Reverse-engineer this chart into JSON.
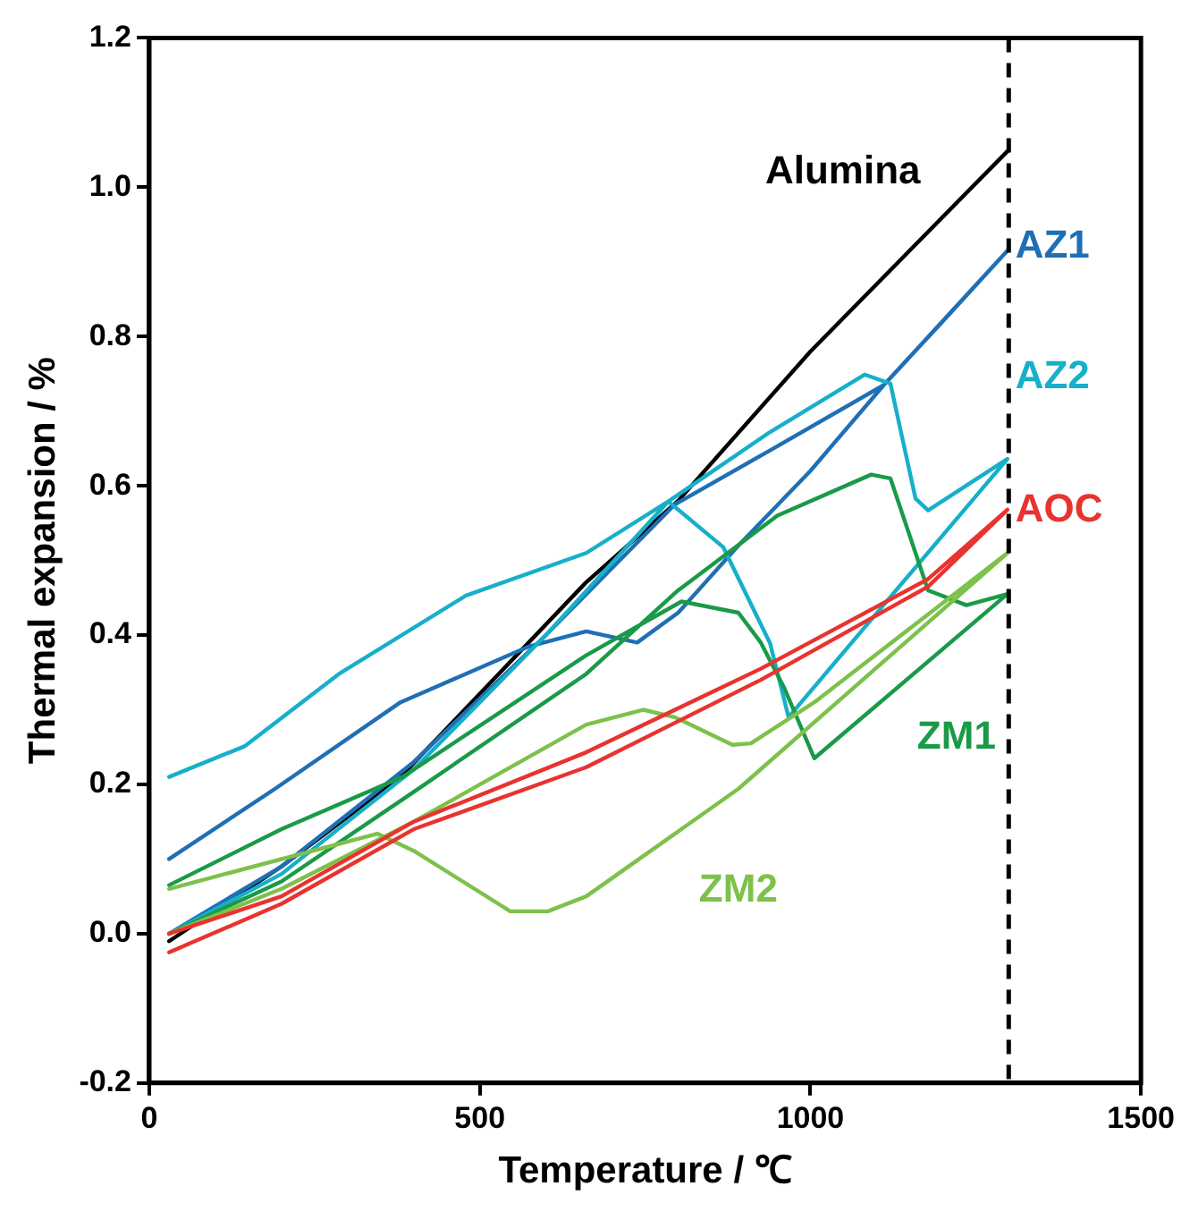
{
  "chart_data": {
    "type": "line",
    "xlabel": "Temperature / ℃",
    "ylabel": "Thermal expansion / %",
    "xlim": [
      0,
      1500
    ],
    "xticks": [
      0,
      500,
      1000,
      1500
    ],
    "ylim": [
      -0.2,
      1.2
    ],
    "yticks": [
      {
        "value": -0.2,
        "label": "-0.2"
      },
      {
        "value": 0,
        "label": "0.0"
      },
      {
        "value": 0.2,
        "label": "0.2"
      },
      {
        "value": 0.4,
        "label": "0.4"
      },
      {
        "value": 0.6,
        "label": "0.6"
      },
      {
        "value": 0.8,
        "label": "0.8"
      },
      {
        "value": 1,
        "label": "1.0"
      },
      {
        "value": 1.2,
        "label": "1.2"
      }
    ],
    "grid": false,
    "legend": false,
    "marker": "none",
    "line_style": "solid",
    "ref_lines": [
      {
        "axis": "x",
        "value": 1300,
        "color": "#000000",
        "line_style": "dashed"
      }
    ],
    "series": [
      {
        "name": "AOC",
        "color": "#e8332f",
        "x": [
          30,
          200,
          400,
          661,
          925,
          1178,
          1298,
          1178,
          925,
          661,
          400,
          200,
          30
        ],
        "values": [
          -0.025,
          0.04,
          0.14,
          0.223,
          0.34,
          0.465,
          0.568,
          0.475,
          0.355,
          0.243,
          0.15,
          0.05,
          0.0
        ]
      },
      {
        "name": "ZM2",
        "color": "#7dc14b",
        "x": [
          30,
          200,
          400,
          661,
          747,
          795,
          882,
          910,
          1006,
          1298,
          891,
          661,
          603,
          546,
          402,
          345,
          30
        ],
        "values": [
          0.0,
          0.06,
          0.15,
          0.28,
          0.3,
          0.29,
          0.253,
          0.255,
          0.31,
          0.51,
          0.194,
          0.05,
          0.03,
          0.03,
          0.11,
          0.134,
          0.06
        ]
      },
      {
        "name": "ZM1",
        "color": "#1a9a48",
        "x": [
          30,
          200,
          400,
          661,
          800,
          950,
          1092,
          1121,
          1178,
          1236,
          1298,
          1006,
          960,
          925,
          891,
          805,
          661,
          383,
          200,
          30
        ],
        "values": [
          0.0,
          0.07,
          0.19,
          0.348,
          0.46,
          0.56,
          0.615,
          0.61,
          0.46,
          0.44,
          0.455,
          0.235,
          0.33,
          0.39,
          0.43,
          0.445,
          0.373,
          0.21,
          0.14,
          0.065
        ]
      },
      {
        "name": "AZ2",
        "color": "#17afc9",
        "x": [
          30,
          200,
          400,
          600,
          785,
          939,
          1082,
          1121,
          1159,
          1178,
          1298,
          967,
          939,
          868,
          785,
          661,
          479,
          287,
          144,
          30
        ],
        "values": [
          0.0,
          0.08,
          0.22,
          0.4,
          0.579,
          0.672,
          0.749,
          0.737,
          0.583,
          0.567,
          0.636,
          0.29,
          0.389,
          0.518,
          0.579,
          0.51,
          0.453,
          0.348,
          0.251,
          0.21
        ]
      },
      {
        "name": "AZ1",
        "color": "#1f6fb5",
        "x": [
          30,
          200,
          400,
          600,
          795,
          940,
          1111,
          1200,
          1298,
          1111,
          1000,
          891,
          800,
          738,
          661,
          575,
          380,
          190,
          30
        ],
        "values": [
          0.0,
          0.09,
          0.23,
          0.4,
          0.575,
          0.648,
          0.735,
          0.82,
          0.915,
          0.735,
          0.62,
          0.52,
          0.43,
          0.39,
          0.405,
          0.385,
          0.31,
          0.194,
          0.1
        ]
      },
      {
        "name": "Alumina",
        "color": "#000000",
        "x": [
          30,
          200,
          380,
          660,
          800,
          1000,
          1300
        ],
        "values": [
          -0.01,
          0.09,
          0.21,
          0.47,
          0.58,
          0.78,
          1.05
        ]
      }
    ]
  }
}
